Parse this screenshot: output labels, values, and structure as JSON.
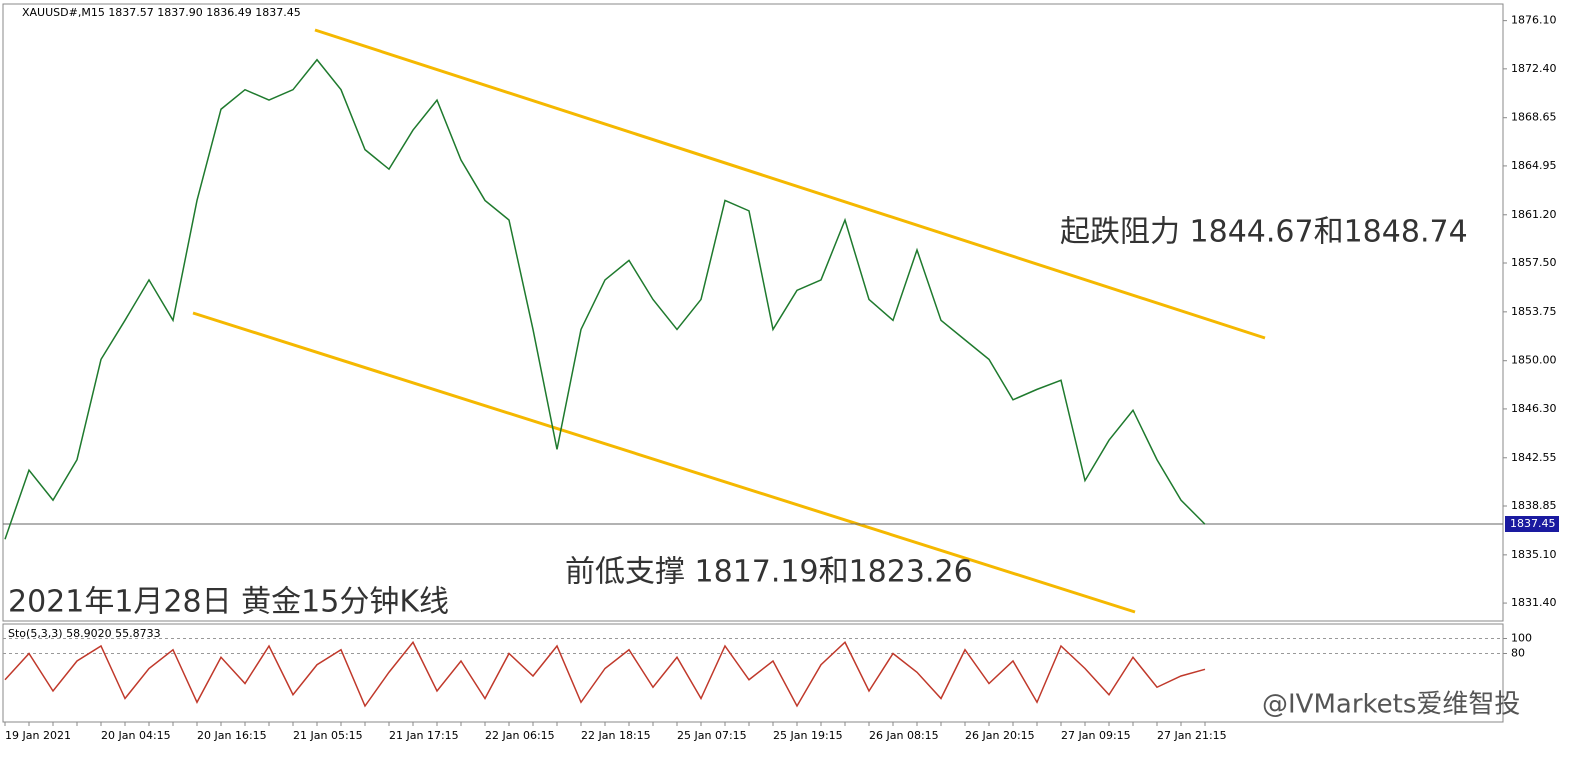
{
  "chart_data": [
    {
      "type": "line",
      "title": "XAUUSD#,M15  1837.57 1837.90 1836.49 1837.45",
      "categories": [
        "19 Jan 2021",
        null,
        null,
        null,
        "20 Jan 04:15",
        null,
        null,
        null,
        "20 Jan 16:15",
        null,
        null,
        null,
        "21 Jan 05:15",
        null,
        null,
        null,
        "21 Jan 17:15",
        null,
        null,
        null,
        "22 Jan 06:15",
        null,
        null,
        null,
        "22 Jan 18:15",
        null,
        null,
        null,
        "25 Jan 07:15",
        null,
        null,
        null,
        "25 Jan 19:15",
        null,
        null,
        null,
        "26 Jan 08:15",
        null,
        null,
        null,
        "26 Jan 20:15",
        null,
        null,
        null,
        "27 Jan 09:15",
        null,
        null,
        null,
        "27 Jan 21:15",
        null,
        null
      ],
      "values": [
        1836.3,
        1841.6,
        1839.3,
        1842.4,
        1850.1,
        1853.1,
        1856.2,
        1853.1,
        1862.3,
        1869.3,
        1870.8,
        1870.0,
        1870.8,
        1873.1,
        1870.8,
        1866.2,
        1864.7,
        1867.7,
        1870.0,
        1865.4,
        1862.3,
        1860.8,
        1852.4,
        1843.2,
        1852.4,
        1856.2,
        1857.7,
        1854.7,
        1852.4,
        1854.7,
        1862.3,
        1861.5,
        1852.4,
        1855.4,
        1856.2,
        1860.8,
        1854.7,
        1853.1,
        1858.5,
        1853.1,
        1851.6,
        1850.1,
        1847.0,
        1847.8,
        1848.5,
        1840.8,
        1843.9,
        1846.2,
        1842.4,
        1839.3,
        1837.45
      ],
      "color": "#1f7a2e",
      "ylim": [
        1830.1,
        1877.3
      ],
      "yticks": [
        {
          "value": 1876.1,
          "label": "1876.10"
        },
        {
          "value": 1872.4,
          "label": "1872.40"
        },
        {
          "value": 1868.65,
          "label": "1868.65"
        },
        {
          "value": 1864.95,
          "label": "1864.95"
        },
        {
          "value": 1861.2,
          "label": "1861.20"
        },
        {
          "value": 1857.5,
          "label": "1857.50"
        },
        {
          "value": 1853.75,
          "label": "1853.75"
        },
        {
          "value": 1850,
          "label": "1850.00"
        },
        {
          "value": 1846.3,
          "label": "1846.30"
        },
        {
          "value": 1842.55,
          "label": "1842.55"
        },
        {
          "value": 1838.85,
          "label": "1838.85"
        },
        {
          "value": 1835.1,
          "label": "1835.10"
        },
        {
          "value": 1831.4,
          "label": "1831.40"
        }
      ],
      "annotations": [
        "起跌阻力 1844.67和1848.74",
        "前低支撑 1817.19和1823.26",
        "2021年1月28日 黄金15分钟K线",
        "@IVMarkets爱维智投"
      ]
    },
    {
      "type": "line",
      "title": "Sto(5,3,3) 58.9020 55.8733",
      "values": [
        45,
        80,
        30,
        70,
        90,
        20,
        60,
        85,
        15,
        75,
        40,
        90,
        25,
        65,
        85,
        10,
        55,
        95,
        30,
        70,
        20,
        80,
        50,
        90,
        15,
        60,
        85,
        35,
        75,
        20,
        90,
        45,
        70,
        10,
        65,
        95,
        30,
        80,
        55,
        20,
        85,
        40,
        70,
        15,
        90,
        60,
        25,
        75,
        35,
        50,
        58.9
      ],
      "color": "#c0392b",
      "ylim": [
        -10,
        118
      ],
      "yticks": [
        100,
        80
      ]
    }
  ]
}
